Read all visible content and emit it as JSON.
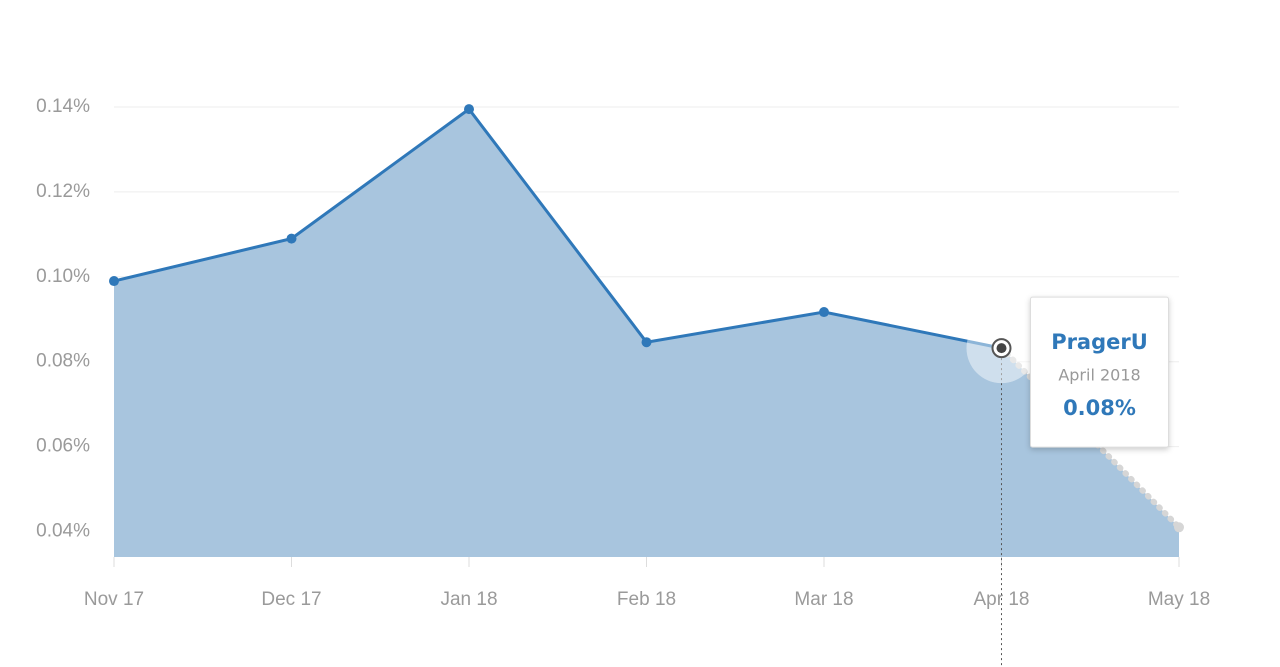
{
  "chart_data": {
    "type": "area",
    "categories": [
      "Nov 17",
      "Dec 17",
      "Jan 18",
      "Feb 18",
      "Mar 18",
      "Apr 18",
      "May 18"
    ],
    "series": [
      {
        "name": "PragerU",
        "color": "#2f78b9",
        "fill": "#a8c5de",
        "values": [
          0.099,
          0.109,
          0.1395,
          0.0846,
          0.0917,
          0.0832,
          0.041
        ]
      }
    ],
    "incomplete_last_point": true,
    "ylim": [
      0.034,
      0.14
    ],
    "yticks": [
      {
        "value": 0.04,
        "label": "0.04%"
      },
      {
        "value": 0.06,
        "label": "0.06%"
      },
      {
        "value": 0.08,
        "label": "0.08%"
      },
      {
        "value": 0.1,
        "label": "0.10%"
      },
      {
        "value": 0.12,
        "label": "0.12%"
      },
      {
        "value": 0.14,
        "label": "0.14%"
      }
    ],
    "grid": true,
    "tooltip": {
      "category": "Apr 18",
      "subtitle": "April 2018",
      "value_label": "0.08%"
    }
  }
}
